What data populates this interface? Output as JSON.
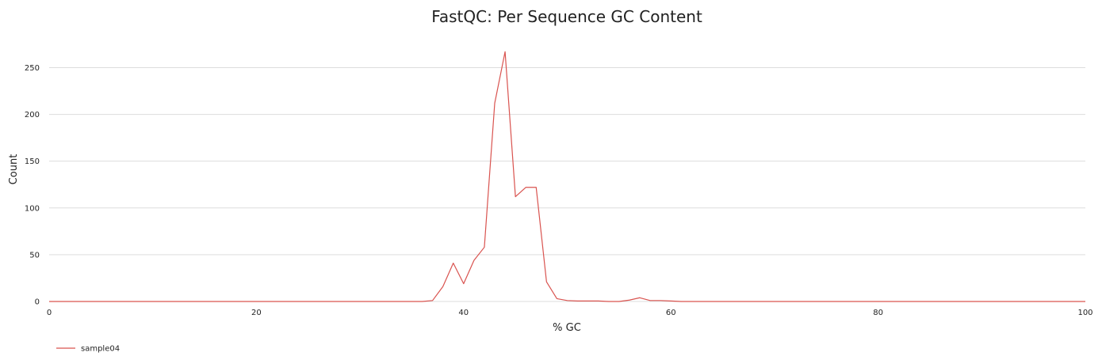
{
  "chart_data": {
    "type": "line",
    "title": "FastQC: Per Sequence GC Content",
    "xlabel": "% GC",
    "ylabel": "Count",
    "xlim": [
      0,
      100
    ],
    "ylim": [
      0,
      280
    ],
    "x_ticks": [
      "0",
      "20",
      "40",
      "60",
      "80",
      "100"
    ],
    "y_ticks": [
      "0",
      "50",
      "100",
      "150",
      "200",
      "250"
    ],
    "grid": "horizontal",
    "legend_position": "bottom-left",
    "series": [
      {
        "name": "sample04",
        "color": "#d9534f",
        "points": [
          [
            0,
            0
          ],
          [
            36,
            0
          ],
          [
            37,
            1
          ],
          [
            38,
            16
          ],
          [
            39,
            41
          ],
          [
            40,
            19
          ],
          [
            41,
            44
          ],
          [
            42,
            58
          ],
          [
            43,
            212
          ],
          [
            44,
            267
          ],
          [
            45,
            112
          ],
          [
            46,
            122
          ],
          [
            47,
            122
          ],
          [
            48,
            21
          ],
          [
            49,
            3
          ],
          [
            50,
            1
          ],
          [
            51,
            0.5
          ],
          [
            52,
            0.5
          ],
          [
            53,
            0.5
          ],
          [
            54,
            0
          ],
          [
            55,
            0
          ],
          [
            56,
            1.5
          ],
          [
            57,
            4
          ],
          [
            58,
            1
          ],
          [
            59,
            1
          ],
          [
            60,
            0.5
          ],
          [
            61,
            0
          ],
          [
            100,
            0
          ]
        ]
      }
    ]
  }
}
